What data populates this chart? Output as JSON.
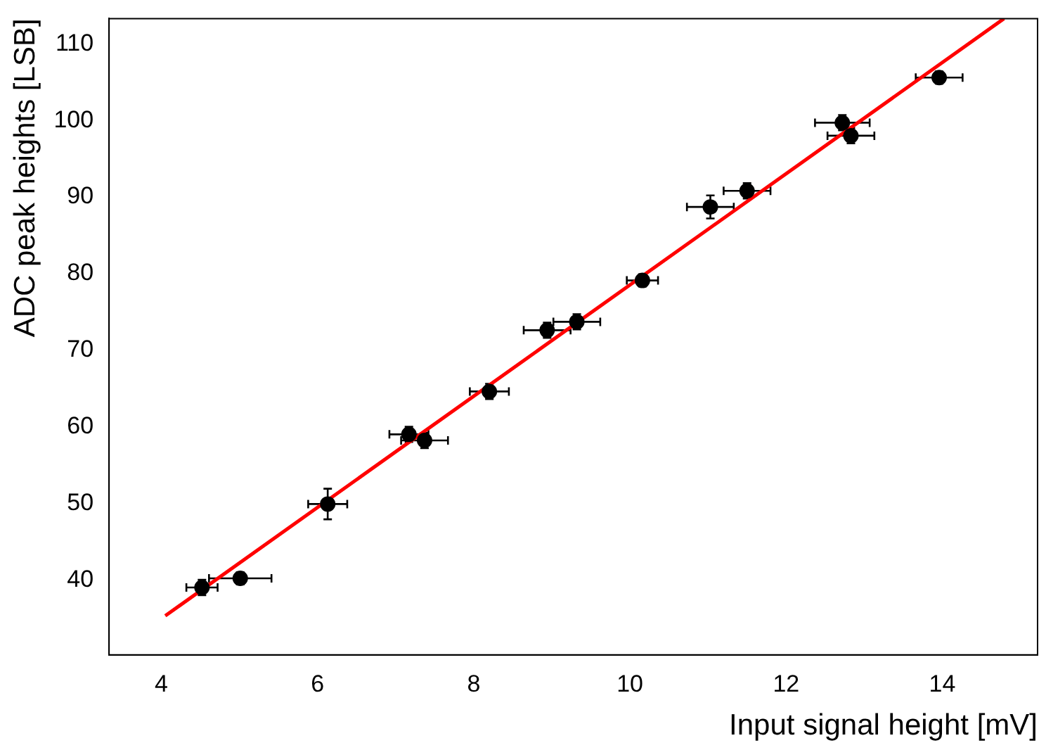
{
  "chart_data": {
    "type": "scatter",
    "xlabel": "Input signal height [mV]",
    "ylabel": "ADC peak heights [LSB]",
    "xlim": [
      3.33,
      15.22
    ],
    "ylim": [
      30.2,
      113.3
    ],
    "xticks": [
      4,
      6,
      8,
      10,
      12,
      14
    ],
    "yticks": [
      40,
      50,
      60,
      70,
      80,
      90,
      100,
      110
    ],
    "grid": false,
    "legend": false,
    "marker": "circle",
    "series": [
      {
        "color": "#000000",
        "x": [
          4.52,
          5.01,
          6.13,
          7.17,
          7.37,
          8.2,
          8.94,
          9.32,
          10.16,
          11.03,
          11.5,
          12.72,
          12.83,
          13.96
        ],
        "values": [
          39.0,
          40.2,
          49.9,
          59.0,
          58.2,
          64.6,
          72.6,
          73.7,
          79.1,
          88.7,
          90.8,
          99.7,
          98.0,
          105.6
        ],
        "errors": [
          1,
          0.8,
          2,
          1,
          1,
          1,
          1,
          1,
          0.8,
          1.5,
          1,
          1,
          1,
          0.8
        ],
        "xerrors": [
          0.2,
          0.4,
          0.25,
          0.25,
          0.3,
          0.25,
          0.3,
          0.3,
          0.2,
          0.3,
          0.3,
          0.35,
          0.3,
          0.3
        ]
      },
      {
        "type": "line",
        "marker": "none",
        "color": "#ff0000",
        "x": [
          4.05,
          14.79
        ],
        "values": [
          35.3,
          113.3
        ]
      }
    ]
  }
}
